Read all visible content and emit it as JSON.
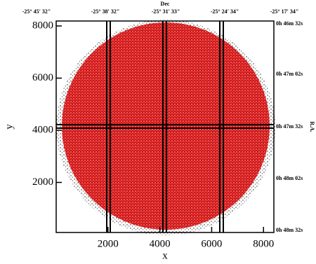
{
  "chart_data": {
    "type": "scatter",
    "xlabel": "x",
    "ylabel": "y",
    "xlim": [
      0,
      8400
    ],
    "ylim": [
      80,
      8190
    ],
    "xticks": [
      2000,
      4000,
      6000,
      8000
    ],
    "yticks": [
      2000,
      4000,
      6000,
      8000
    ],
    "top_axis_label": "Dec",
    "top_tick_labels": [
      "-25° 45' 32\"",
      "-25° 38' 32\"",
      "-25° 31' 33\"",
      "-25° 24' 34\"",
      "-25° 17' 34\""
    ],
    "right_axis_label": "R.A.",
    "right_tick_labels": [
      "0h 46m 32s",
      "0h 47m 02s",
      "0h 47m 32s",
      "0h 48m 02s",
      "0h 48m 32s"
    ],
    "color": "#cc0000"
  }
}
